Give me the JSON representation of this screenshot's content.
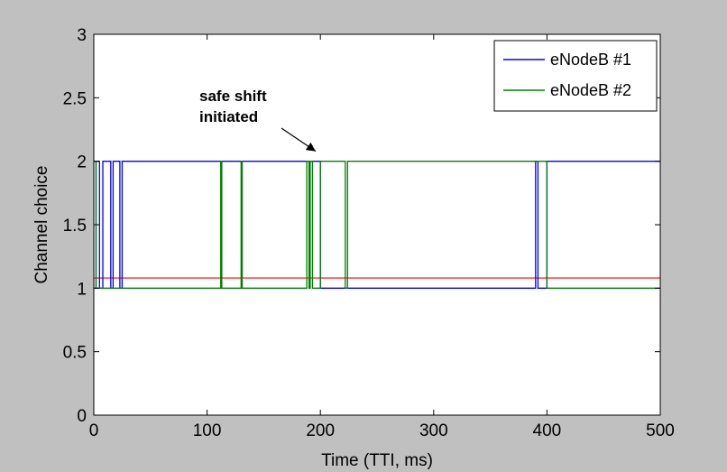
{
  "chart_data": {
    "type": "line",
    "xlabel": "Time (TTI, ms)",
    "ylabel": "Channel choice",
    "xlim": [
      0,
      500
    ],
    "ylim": [
      0,
      3
    ],
    "x_ticks": [
      "0",
      "100",
      "200",
      "300",
      "400",
      "500"
    ],
    "y_ticks": [
      "0",
      "0.5",
      "1",
      "1.5",
      "2",
      "2.5",
      "3"
    ],
    "x_tick_values": [
      0,
      100,
      200,
      300,
      400,
      500
    ],
    "y_tick_values": [
      0,
      0.5,
      1,
      1.5,
      2,
      2.5,
      3
    ],
    "grid": false,
    "legend_position": "top-right",
    "series": [
      {
        "name": "eNodeB #1",
        "color": "#0000ff",
        "x": [
          0,
          2,
          2,
          5,
          5,
          8,
          8,
          15,
          15,
          17,
          17,
          23,
          23,
          25,
          25,
          200,
          200,
          390,
          390,
          392,
          392,
          400,
          400,
          500
        ],
        "y": [
          1,
          1,
          2,
          2,
          1,
          1,
          2,
          2,
          1,
          1,
          2,
          2,
          1,
          1,
          2,
          2,
          1,
          1,
          2,
          2,
          1,
          1,
          2,
          2
        ]
      },
      {
        "name": "eNodeB #2",
        "color": "#008000",
        "x": [
          0,
          2,
          2,
          112,
          112,
          113,
          113,
          130,
          130,
          131,
          131,
          188,
          188,
          190,
          190,
          191,
          191,
          193,
          193,
          194,
          194,
          200,
          200,
          222,
          222,
          224,
          224,
          400,
          400,
          500
        ],
        "y": [
          2,
          2,
          1,
          1,
          2,
          2,
          1,
          1,
          2,
          2,
          1,
          1,
          2,
          2,
          1,
          1,
          2,
          2,
          1,
          1,
          1,
          1,
          2,
          2,
          1,
          1,
          2,
          2,
          1,
          1
        ]
      }
    ],
    "reference_line": {
      "y": 1.08,
      "color": "#ff0000"
    },
    "annotations": [
      {
        "lines": [
          "safe shift",
          "initiated"
        ],
        "points_to": {
          "x": 199,
          "y": 2.05
        }
      }
    ]
  }
}
